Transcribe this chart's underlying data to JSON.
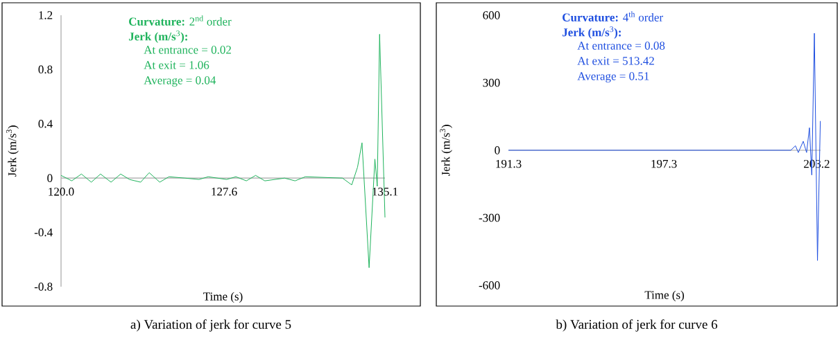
{
  "chart_data": [
    {
      "type": "line",
      "xlabel": "Time (s)",
      "ylabel": "Jerk (m/s$^{3}$)",
      "annotations": [
        "**Curvature:** 2$^{nd}$ order",
        "**Jerk (m/s**$^{3}$**):**",
        "At entrance = 0.02",
        "At exit = 1.06",
        "Average = 0.04",
        "a) Variation of jerk for curve 5"
      ],
      "x": [
        120.0,
        120.5,
        120.95,
        121.41,
        121.84,
        122.33,
        122.78,
        123.19,
        123.71,
        124.11,
        124.6,
        125.03,
        125.78,
        126.43,
        126.86,
        127.72,
        128.15,
        128.64,
        129.07,
        129.5,
        130.42,
        130.91,
        131.39,
        133.12,
        133.55,
        133.82,
        134.03,
        134.36,
        134.63,
        134.74,
        134.85,
        135.1
      ],
      "series": [
        {
          "color": "#1fb35c",
          "values": [
            0.02,
            -0.02,
            0.03,
            -0.03,
            0.03,
            -0.03,
            0.03,
            -0.01,
            -0.03,
            0.04,
            -0.03,
            0.01,
            0,
            -0.01,
            0.01,
            -0.01,
            0.01,
            -0.02,
            0.02,
            -0.02,
            0,
            -0.02,
            0.01,
            0,
            -0.05,
            0.08,
            0.26,
            -0.66,
            0.14,
            -0.06,
            1.06,
            -0.29
          ]
        }
      ],
      "xlim": [
        120.0,
        135.1
      ],
      "ylim": [
        -0.8,
        1.2
      ],
      "xticks": [
        {
          "value": 120.0,
          "label": "120.0"
        },
        127.6,
        135.1
      ],
      "yticks": [
        -0.8,
        -0.4,
        0,
        0.4,
        0.8,
        1.2
      ],
      "marker": "none"
    },
    {
      "type": "line",
      "xlabel": "Time (s)",
      "ylabel": "Jerk (m/s$^{3}$)",
      "annotations": [
        "**Curvature:** 4$^{th}$ order",
        "**Jerk (m/s**$^{3}$**):**",
        "At entrance = 0.08",
        "At exit = 513.42",
        "Average = 0.51",
        "b) Variation of jerk for curve 6"
      ],
      "x": [
        191.3,
        201.85,
        202.2,
        202.38,
        202.49,
        202.68,
        202.81,
        202.92,
        203.01,
        203.11,
        203.23,
        203.34
      ],
      "series": [
        {
          "color": "#1f4fe0",
          "values": [
            0,
            0,
            0,
            20,
            -10,
            40,
            -10,
            100,
            -110,
            520,
            -490,
            130
          ]
        }
      ],
      "xlim": [
        191.3,
        203.35
      ],
      "ylim": [
        -600,
        600
      ],
      "xticks": [
        191.3,
        197.3,
        203.2
      ],
      "yticks": [
        -600,
        -300,
        0,
        300,
        600
      ],
      "marker": "none"
    }
  ]
}
